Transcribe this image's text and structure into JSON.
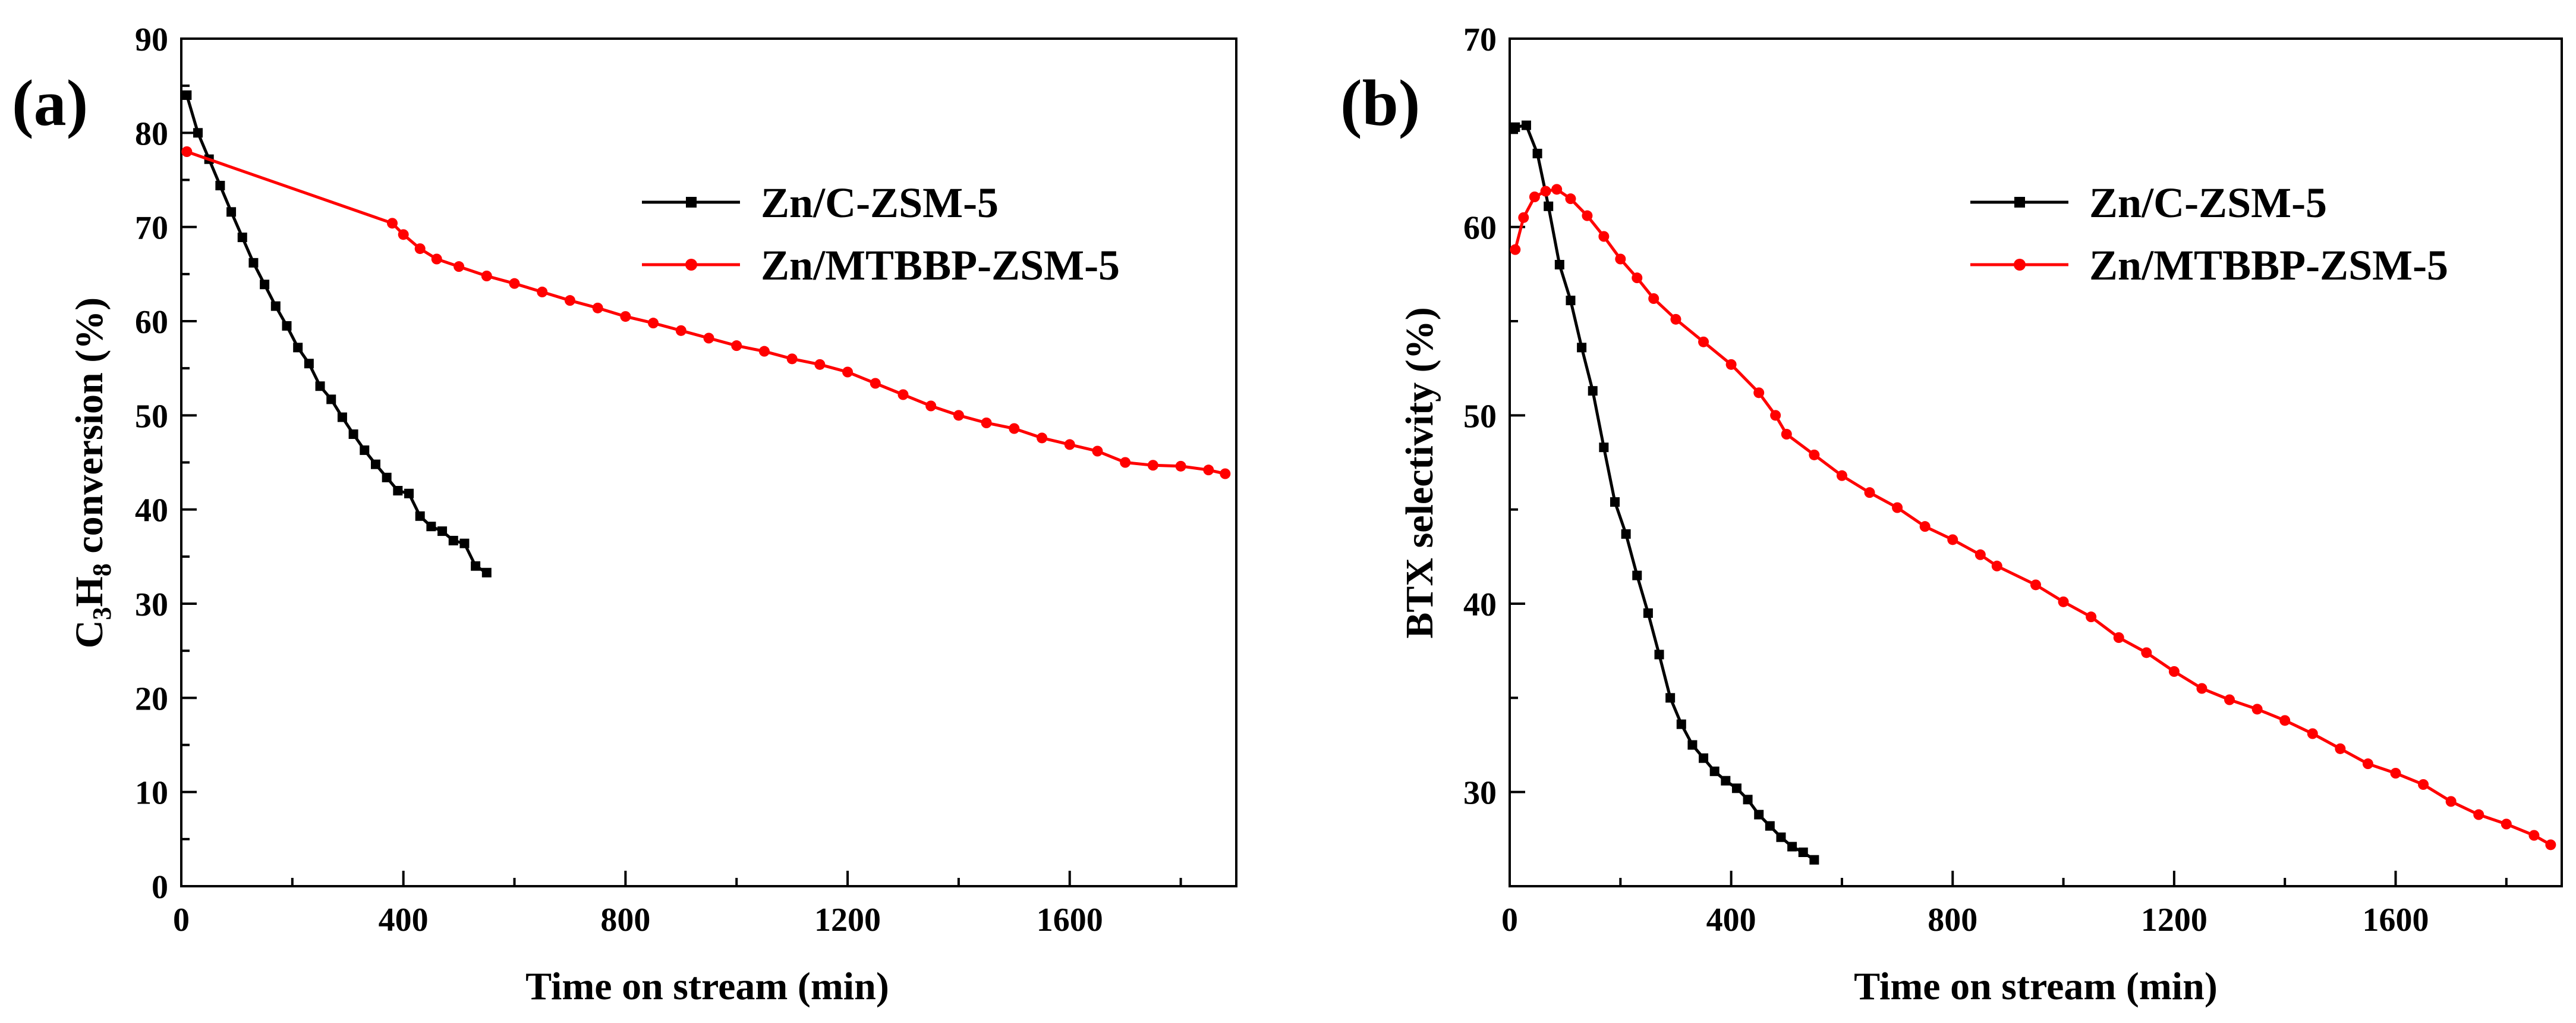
{
  "colors": {
    "series_black": "#000000",
    "series_red": "#ff0000",
    "axis": "#000000",
    "background": "#ffffff"
  },
  "chart_data": [
    {
      "type": "line",
      "panel_label": "(a)",
      "xlabel": "Time on stream (min)",
      "ylabel_parts": {
        "pre": "C",
        "sub1": "3",
        "mid": "H",
        "sub2": "8",
        "post": " conversion (%)"
      },
      "xlim": [
        0,
        1900
      ],
      "ylim": [
        0,
        90
      ],
      "xticks": [
        0,
        400,
        800,
        1200,
        1600
      ],
      "yticks": [
        0,
        10,
        20,
        30,
        40,
        50,
        60,
        70,
        80,
        90
      ],
      "legend_position": "top-right",
      "series": [
        {
          "name": "Zn/C-ZSM-5",
          "color": "#000000",
          "marker": "square",
          "x": [
            10,
            30,
            50,
            70,
            90,
            110,
            130,
            150,
            170,
            190,
            210,
            230,
            250,
            270,
            290,
            310,
            330,
            350,
            370,
            390,
            410,
            430,
            450,
            470,
            490,
            510,
            530,
            550
          ],
          "y": [
            84,
            80,
            77.2,
            74.4,
            71.6,
            68.9,
            66.2,
            63.9,
            61.6,
            59.5,
            57.2,
            55.5,
            53.1,
            51.7,
            49.8,
            48.0,
            46.3,
            44.8,
            43.4,
            42.0,
            41.7,
            39.3,
            38.2,
            37.7,
            36.7,
            36.4,
            34.0,
            33.3
          ]
        },
        {
          "name": "Zn/MTBBP-ZSM-5",
          "color": "#ff0000",
          "marker": "circle",
          "x": [
            10,
            380,
            400,
            430,
            460,
            500,
            550,
            600,
            650,
            700,
            750,
            800,
            850,
            900,
            950,
            1000,
            1050,
            1100,
            1150,
            1200,
            1250,
            1300,
            1350,
            1400,
            1450,
            1500,
            1550,
            1600,
            1650,
            1700,
            1750,
            1800,
            1850,
            1880
          ],
          "y": [
            78,
            70.4,
            69.2,
            67.7,
            66.6,
            65.8,
            64.8,
            64.0,
            63.1,
            62.2,
            61.4,
            60.5,
            59.8,
            59.0,
            58.2,
            57.4,
            56.8,
            56.0,
            55.4,
            54.6,
            53.4,
            52.2,
            51.0,
            50.0,
            49.2,
            48.6,
            47.6,
            46.9,
            46.2,
            45.0,
            44.7,
            44.6,
            44.2,
            43.8
          ]
        }
      ]
    },
    {
      "type": "line",
      "panel_label": "(b)",
      "xlabel": "Time on stream (min)",
      "ylabel": "BTX selectivity (%)",
      "xlim": [
        0,
        1900
      ],
      "ylim": [
        25,
        70
      ],
      "xticks": [
        0,
        400,
        800,
        1200,
        1600
      ],
      "yticks": [
        30,
        40,
        50,
        60,
        70
      ],
      "legend_position": "top-right",
      "series": [
        {
          "name": "Zn/C-ZSM-5",
          "color": "#000000",
          "marker": "square",
          "x": [
            10,
            30,
            50,
            70,
            90,
            110,
            130,
            150,
            170,
            190,
            210,
            230,
            250,
            270,
            290,
            310,
            330,
            350,
            370,
            390,
            410,
            430,
            450,
            470,
            490,
            510,
            530,
            550
          ],
          "y": [
            65.3,
            65.4,
            63.9,
            61.1,
            58.0,
            56.1,
            53.6,
            51.3,
            48.3,
            45.4,
            43.7,
            41.5,
            39.5,
            37.3,
            35.0,
            33.6,
            32.5,
            31.8,
            31.1,
            30.6,
            30.2,
            29.6,
            28.8,
            28.2,
            27.6,
            27.1,
            26.8,
            26.4
          ]
        },
        {
          "name": "Zn/MTBBP-ZSM-5",
          "color": "#ff0000",
          "marker": "circle",
          "x": [
            10,
            25,
            45,
            65,
            85,
            110,
            140,
            170,
            200,
            230,
            260,
            300,
            350,
            400,
            450,
            480,
            500,
            550,
            600,
            650,
            700,
            750,
            800,
            850,
            880,
            950,
            1000,
            1050,
            1100,
            1150,
            1200,
            1250,
            1300,
            1350,
            1400,
            1450,
            1500,
            1550,
            1600,
            1650,
            1700,
            1750,
            1800,
            1850,
            1880
          ],
          "y": [
            58.8,
            60.5,
            61.6,
            61.9,
            62.0,
            61.5,
            60.6,
            59.5,
            58.3,
            57.3,
            56.2,
            55.1,
            53.9,
            52.7,
            51.2,
            50.0,
            49.0,
            47.9,
            46.8,
            45.9,
            45.1,
            44.1,
            43.4,
            42.6,
            42.0,
            41.0,
            40.1,
            39.3,
            38.2,
            37.4,
            36.4,
            35.5,
            34.9,
            34.4,
            33.8,
            33.1,
            32.3,
            31.5,
            31.0,
            30.4,
            29.5,
            28.8,
            28.3,
            27.7,
            27.2
          ]
        }
      ]
    }
  ]
}
